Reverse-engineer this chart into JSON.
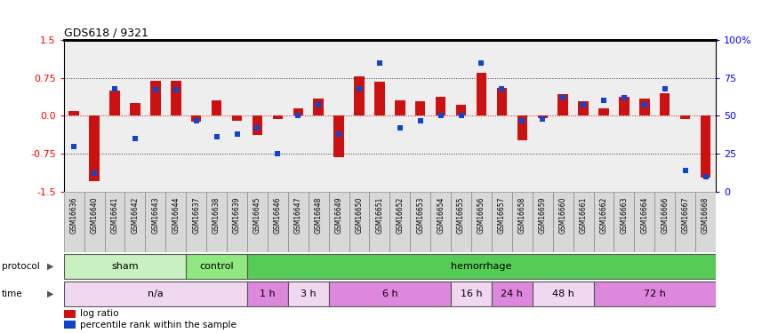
{
  "title": "GDS618 / 9321",
  "samples": [
    "GSM16636",
    "GSM16640",
    "GSM16641",
    "GSM16642",
    "GSM16643",
    "GSM16644",
    "GSM16637",
    "GSM16638",
    "GSM16639",
    "GSM16645",
    "GSM16646",
    "GSM16647",
    "GSM16648",
    "GSM16649",
    "GSM16650",
    "GSM16651",
    "GSM16652",
    "GSM16653",
    "GSM16654",
    "GSM16655",
    "GSM16656",
    "GSM16657",
    "GSM16658",
    "GSM16659",
    "GSM16660",
    "GSM16661",
    "GSM16662",
    "GSM16663",
    "GSM16664",
    "GSM16666",
    "GSM16667",
    "GSM16668"
  ],
  "log_ratio": [
    0.1,
    -1.3,
    0.5,
    0.25,
    0.7,
    0.7,
    -0.12,
    0.3,
    -0.1,
    -0.38,
    -0.06,
    0.15,
    0.35,
    -0.82,
    0.78,
    0.68,
    0.3,
    0.28,
    0.38,
    0.22,
    0.85,
    0.55,
    -0.48,
    -0.04,
    0.43,
    0.28,
    0.15,
    0.38,
    0.35,
    0.45,
    -0.06,
    -1.22
  ],
  "percentile": [
    30,
    12,
    68,
    35,
    67,
    67,
    47,
    36,
    38,
    42,
    25,
    50,
    57,
    38,
    68,
    85,
    42,
    47,
    50,
    50,
    85,
    68,
    47,
    48,
    62,
    57,
    60,
    62,
    57,
    68,
    14,
    10
  ],
  "protocol_groups": [
    {
      "label": "sham",
      "start": 0,
      "end": 6,
      "color": "#c8f0c0"
    },
    {
      "label": "control",
      "start": 6,
      "end": 9,
      "color": "#90e880"
    },
    {
      "label": "hemorrhage",
      "start": 9,
      "end": 32,
      "color": "#55cc55"
    }
  ],
  "time_groups": [
    {
      "label": "n/a",
      "start": 0,
      "end": 9,
      "color": "#f0d8f0"
    },
    {
      "label": "1 h",
      "start": 9,
      "end": 11,
      "color": "#dd88dd"
    },
    {
      "label": "3 h",
      "start": 11,
      "end": 13,
      "color": "#f0d8f0"
    },
    {
      "label": "6 h",
      "start": 13,
      "end": 19,
      "color": "#dd88dd"
    },
    {
      "label": "16 h",
      "start": 19,
      "end": 21,
      "color": "#f0d8f0"
    },
    {
      "label": "24 h",
      "start": 21,
      "end": 23,
      "color": "#dd88dd"
    },
    {
      "label": "48 h",
      "start": 23,
      "end": 26,
      "color": "#f0d8f0"
    },
    {
      "label": "72 h",
      "start": 26,
      "end": 32,
      "color": "#dd88dd"
    }
  ],
  "ylim": [
    -1.5,
    1.5
  ],
  "yticks_left": [
    -1.5,
    -0.75,
    0.0,
    0.75,
    1.5
  ],
  "yticks_right": [
    0,
    25,
    50,
    75,
    100
  ],
  "bar_color": "#cc1111",
  "dot_color": "#1144cc",
  "bg_color": "#eeeeee",
  "label_bg": "#d8d8d8"
}
